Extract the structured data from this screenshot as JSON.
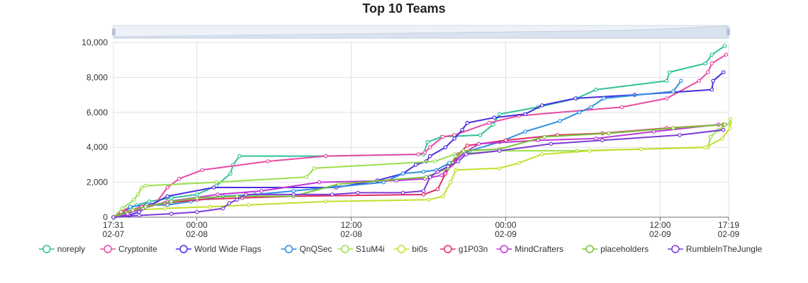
{
  "chart_data": {
    "type": "line",
    "title": "Top 10 Teams",
    "xlabel": "",
    "ylabel": "",
    "x_unit": "hours",
    "xlim": [
      0,
      47.8
    ],
    "ylim": [
      0,
      10000
    ],
    "y_ticks": [
      0,
      2000,
      4000,
      6000,
      8000,
      10000
    ],
    "y_tick_labels": [
      "0",
      "2,000",
      "4,000",
      "6,000",
      "8,000",
      "10,000"
    ],
    "x_ticks": [
      {
        "x": 0,
        "time": "17:31",
        "date": "02-07"
      },
      {
        "x": 6.48,
        "time": "00:00",
        "date": "02-08"
      },
      {
        "x": 18.48,
        "time": "12:00",
        "date": "02-08"
      },
      {
        "x": 30.48,
        "time": "00:00",
        "date": "02-09"
      },
      {
        "x": 42.48,
        "time": "12:00",
        "date": "02-09"
      },
      {
        "x": 47.8,
        "time": "17:19",
        "date": "02-09"
      }
    ],
    "grid": true,
    "legend_position": "bottom",
    "zoom_slider": true,
    "series": [
      {
        "name": "noreply",
        "color": "#2ec29a",
        "points": [
          [
            0.1,
            0
          ],
          [
            0.5,
            200
          ],
          [
            1,
            400
          ],
          [
            1.8,
            700
          ],
          [
            2.8,
            900
          ],
          [
            4.5,
            1100
          ],
          [
            6.5,
            1300
          ],
          [
            8,
            1800
          ],
          [
            9.1,
            2500
          ],
          [
            9.3,
            3000
          ],
          [
            9.8,
            3500
          ],
          [
            16.5,
            3500
          ],
          [
            24.1,
            3600
          ],
          [
            24.4,
            4300
          ],
          [
            25.5,
            4600
          ],
          [
            28.5,
            4700
          ],
          [
            29.5,
            5300
          ],
          [
            30,
            5900
          ],
          [
            33,
            6300
          ],
          [
            36,
            6800
          ],
          [
            37.5,
            7300
          ],
          [
            43,
            7800
          ],
          [
            43.2,
            8300
          ],
          [
            46,
            8800
          ],
          [
            46.5,
            9300
          ],
          [
            47.5,
            9800
          ]
        ]
      },
      {
        "name": "Cryptonite",
        "color": "#e84ba4",
        "points": [
          [
            0,
            0
          ],
          [
            0.6,
            300
          ],
          [
            1.3,
            600
          ],
          [
            2.5,
            700
          ],
          [
            3.3,
            800
          ],
          [
            4.2,
            1700
          ],
          [
            5.1,
            2200
          ],
          [
            6.9,
            2700
          ],
          [
            12,
            3200
          ],
          [
            16.5,
            3500
          ],
          [
            23.7,
            3600
          ],
          [
            24.2,
            3700
          ],
          [
            24.6,
            4000
          ],
          [
            25.6,
            4600
          ],
          [
            26.5,
            4700
          ],
          [
            29.2,
            5400
          ],
          [
            31.5,
            5800
          ],
          [
            39.5,
            6300
          ],
          [
            43,
            6800
          ],
          [
            45.5,
            7800
          ],
          [
            46.2,
            8300
          ],
          [
            46.5,
            8800
          ],
          [
            47.6,
            9300
          ]
        ]
      },
      {
        "name": "World Wide Flags",
        "color": "#4b2de0",
        "points": [
          [
            0,
            0
          ],
          [
            1.2,
            100
          ],
          [
            2,
            300
          ],
          [
            2.9,
            700
          ],
          [
            4.2,
            1200
          ],
          [
            7.8,
            1700
          ],
          [
            17.3,
            1700
          ],
          [
            20.5,
            2100
          ],
          [
            22.5,
            2500
          ],
          [
            23.5,
            3000
          ],
          [
            24.3,
            3200
          ],
          [
            24.6,
            3500
          ],
          [
            25.8,
            4000
          ],
          [
            26.5,
            4500
          ],
          [
            27.1,
            5000
          ],
          [
            27.5,
            5400
          ],
          [
            29.6,
            5700
          ],
          [
            32,
            5900
          ],
          [
            33.3,
            6400
          ],
          [
            35.9,
            6800
          ],
          [
            40.5,
            7000
          ],
          [
            46.5,
            7300
          ],
          [
            46.6,
            7800
          ],
          [
            47.4,
            8300
          ]
        ]
      },
      {
        "name": "QnQSec",
        "color": "#2f8ee0",
        "points": [
          [
            0,
            0
          ],
          [
            0.8,
            200
          ],
          [
            1.3,
            600
          ],
          [
            2.6,
            700
          ],
          [
            4.2,
            700
          ],
          [
            6,
            900
          ],
          [
            8.5,
            1200
          ],
          [
            11,
            1300
          ],
          [
            14,
            1500
          ],
          [
            21,
            2000
          ],
          [
            22.5,
            2500
          ],
          [
            24.1,
            2600
          ],
          [
            25.1,
            2700
          ],
          [
            26.1,
            3100
          ],
          [
            27.7,
            3800
          ],
          [
            30,
            4300
          ],
          [
            32,
            4900
          ],
          [
            34.7,
            5500
          ],
          [
            36.2,
            6000
          ],
          [
            37.1,
            6300
          ],
          [
            38.1,
            6800
          ],
          [
            43.5,
            7200
          ],
          [
            44.1,
            7800
          ]
        ]
      },
      {
        "name": "S1uM4i",
        "color": "#9ae04a",
        "points": [
          [
            0,
            0
          ],
          [
            0.7,
            500
          ],
          [
            1.6,
            1000
          ],
          [
            1.9,
            1300
          ],
          [
            2.2,
            1700
          ],
          [
            2.5,
            1800
          ],
          [
            8,
            2000
          ],
          [
            15,
            2300
          ],
          [
            15.6,
            2800
          ],
          [
            25,
            3200
          ],
          [
            26.5,
            3600
          ],
          [
            30,
            3800
          ],
          [
            36,
            3800
          ],
          [
            46.2,
            4000
          ],
          [
            46.4,
            4600
          ],
          [
            47,
            5000
          ],
          [
            47.9,
            5400
          ]
        ]
      },
      {
        "name": "bi0s",
        "color": "#c2df2a",
        "points": [
          [
            0,
            0
          ],
          [
            1.5,
            400
          ],
          [
            4,
            500
          ],
          [
            7.5,
            600
          ],
          [
            10.5,
            700
          ],
          [
            16.5,
            900
          ],
          [
            24.5,
            1000
          ],
          [
            25.6,
            1200
          ],
          [
            26.2,
            2000
          ],
          [
            26.6,
            2700
          ],
          [
            30,
            2800
          ],
          [
            31.5,
            3100
          ],
          [
            33.3,
            3600
          ],
          [
            37,
            3800
          ],
          [
            41,
            3900
          ],
          [
            46,
            4000
          ],
          [
            47.3,
            4500
          ],
          [
            47.9,
            5100
          ],
          [
            47.95,
            5600
          ]
        ]
      },
      {
        "name": "g1P03n",
        "color": "#e02f66",
        "points": [
          [
            0,
            0
          ],
          [
            1,
            300
          ],
          [
            2.2,
            600
          ],
          [
            4,
            800
          ],
          [
            6.5,
            1000
          ],
          [
            10,
            1100
          ],
          [
            14,
            1200
          ],
          [
            24.1,
            1300
          ],
          [
            25.2,
            1600
          ],
          [
            25.8,
            2500
          ],
          [
            26.3,
            3000
          ],
          [
            26.8,
            3600
          ],
          [
            27.5,
            4100
          ],
          [
            30.5,
            4400
          ],
          [
            34.5,
            4700
          ],
          [
            38,
            4800
          ],
          [
            43,
            5100
          ],
          [
            47.4,
            5300
          ]
        ]
      },
      {
        "name": "MindCrafters",
        "color": "#c037d6",
        "points": [
          [
            0,
            0
          ],
          [
            1.1,
            200
          ],
          [
            2.3,
            500
          ],
          [
            4.2,
            900
          ],
          [
            8.1,
            1300
          ],
          [
            11.5,
            1500
          ],
          [
            16,
            2000
          ],
          [
            22,
            2100
          ],
          [
            24.2,
            2200
          ],
          [
            25.5,
            2400
          ],
          [
            26.4,
            3100
          ],
          [
            27.3,
            3700
          ],
          [
            28.4,
            4200
          ],
          [
            33,
            4400
          ],
          [
            37.5,
            4500
          ],
          [
            42,
            4900
          ],
          [
            47,
            5300
          ]
        ]
      },
      {
        "name": "placeholders",
        "color": "#7ac23a",
        "points": [
          [
            0,
            0
          ],
          [
            1.5,
            400
          ],
          [
            2.5,
            600
          ],
          [
            4.5,
            900
          ],
          [
            6.5,
            1100
          ],
          [
            9.6,
            1200
          ],
          [
            14,
            1200
          ],
          [
            17.5,
            1900
          ],
          [
            24.3,
            2300
          ],
          [
            26,
            2800
          ],
          [
            26.6,
            3500
          ],
          [
            27.2,
            3800
          ],
          [
            30,
            3900
          ],
          [
            33.5,
            4600
          ],
          [
            38.5,
            4800
          ],
          [
            43.5,
            5100
          ],
          [
            47.5,
            5300
          ]
        ]
      },
      {
        "name": "RumbleInTheJungle",
        "color": "#7c3bd6",
        "points": [
          [
            0,
            0
          ],
          [
            2,
            100
          ],
          [
            4.5,
            200
          ],
          [
            6.5,
            300
          ],
          [
            8.5,
            500
          ],
          [
            9,
            800
          ],
          [
            9.6,
            1000
          ],
          [
            10.3,
            1300
          ],
          [
            14,
            1300
          ],
          [
            17,
            1300
          ],
          [
            19,
            1400
          ],
          [
            22.5,
            1400
          ],
          [
            24.1,
            1500
          ],
          [
            24.6,
            2300
          ],
          [
            25.2,
            2600
          ],
          [
            26,
            2900
          ],
          [
            26.8,
            3200
          ],
          [
            27.4,
            3600
          ],
          [
            30,
            3800
          ],
          [
            34,
            4200
          ],
          [
            38,
            4400
          ],
          [
            44,
            4700
          ],
          [
            47.4,
            5000
          ]
        ]
      }
    ]
  }
}
